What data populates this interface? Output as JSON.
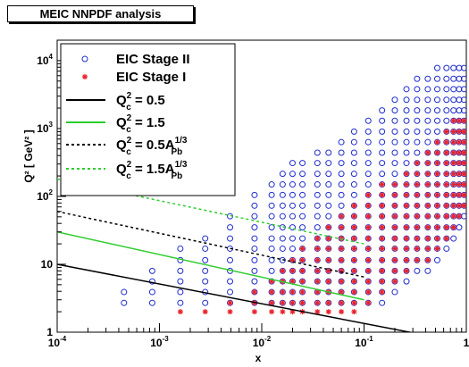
{
  "title": "MEIC NNPDF analysis",
  "chart_data": {
    "type": "scatter",
    "xscale": "log",
    "yscale": "log",
    "xlim": [
      0.0001,
      1
    ],
    "ylim": [
      1,
      20000
    ],
    "xlabel": "x",
    "ylabel": "Q² [ GeV² ]",
    "x_ticks": [
      {
        "value": 0.0001,
        "base": "10",
        "exp": "-4"
      },
      {
        "value": 0.001,
        "base": "10",
        "exp": "-3"
      },
      {
        "value": 0.01,
        "base": "10",
        "exp": "-2"
      },
      {
        "value": 0.1,
        "base": "10",
        "exp": "-1"
      },
      {
        "value": 1,
        "base": "1",
        "exp": ""
      }
    ],
    "y_ticks": [
      {
        "value": 1,
        "base": "1",
        "exp": ""
      },
      {
        "value": 10,
        "base": "10",
        "exp": ""
      },
      {
        "value": 100,
        "base": "10",
        "exp": "2"
      },
      {
        "value": 1000,
        "base": "10",
        "exp": "3"
      },
      {
        "value": 10000,
        "base": "10",
        "exp": "4"
      }
    ],
    "grid": false,
    "legend_position": "top-left",
    "legend": [
      {
        "key": "stage2",
        "marker": "circle",
        "color": "#1f2ccc",
        "parts": [
          {
            "t": "EIC Stage II"
          }
        ]
      },
      {
        "key": "stage1",
        "marker": "star",
        "color": "#e8202a",
        "parts": [
          {
            "t": "EIC Stage I"
          }
        ]
      },
      {
        "key": "c1",
        "line": "solid",
        "color": "#000000",
        "parts": [
          {
            "t": "Q"
          },
          {
            "t": "2",
            "pos": "sup"
          },
          {
            "t": "c",
            "pos": "sub"
          },
          {
            "t": " = 0.5"
          }
        ]
      },
      {
        "key": "c2",
        "line": "solid",
        "color": "#2ecc2e",
        "parts": [
          {
            "t": "Q"
          },
          {
            "t": "2",
            "pos": "sup"
          },
          {
            "t": "c",
            "pos": "sub"
          },
          {
            "t": " = 1.5"
          }
        ]
      },
      {
        "key": "c3",
        "line": "dashed",
        "color": "#000000",
        "parts": [
          {
            "t": "Q"
          },
          {
            "t": "2",
            "pos": "sup"
          },
          {
            "t": "c",
            "pos": "sub"
          },
          {
            "t": " = 0.5A"
          },
          {
            "t": "1/3",
            "pos": "sup"
          },
          {
            "t": "Pb",
            "pos": "sub"
          }
        ]
      },
      {
        "key": "c4",
        "line": "dashed",
        "color": "#2ecc2e",
        "parts": [
          {
            "t": "Q"
          },
          {
            "t": "2",
            "pos": "sup"
          },
          {
            "t": "c",
            "pos": "sub"
          },
          {
            "t": " = 1.5A"
          },
          {
            "t": "1/3",
            "pos": "sup"
          },
          {
            "t": "Pb",
            "pos": "sub"
          }
        ]
      }
    ],
    "lines": [
      {
        "name": "c1",
        "style": "solid",
        "color": "#000000",
        "x": [
          0.0001,
          0.4
        ],
        "y": [
          10,
          0.9
        ]
      },
      {
        "name": "c2",
        "style": "solid",
        "color": "#2ecc2e",
        "x": [
          0.0001,
          0.1
        ],
        "y": [
          30,
          3
        ]
      },
      {
        "name": "c3",
        "style": "dashed",
        "color": "#000000",
        "x": [
          0.0001,
          0.1
        ],
        "y": [
          60,
          6.5
        ]
      },
      {
        "name": "c4",
        "style": "dashed",
        "color": "#2ecc2e",
        "x": [
          0.0001,
          0.1
        ],
        "y": [
          180,
          20
        ]
      }
    ],
    "series": [
      {
        "name": "EIC Stage II",
        "marker": "circle",
        "color": "#1f2ccc",
        "columns": [
          {
            "x": 0.00045,
            "y": [
              2.7,
              3.9
            ]
          },
          {
            "x": 0.00085,
            "y": [
              2.7,
              3.9,
              5.6,
              8
            ]
          },
          {
            "x": 0.0016,
            "y": [
              2.7,
              3.9,
              5.6,
              8,
              11.5,
              17
            ]
          },
          {
            "x": 0.0028,
            "y": [
              2.7,
              3.9,
              5.6,
              8,
              11.5,
              17,
              24
            ]
          },
          {
            "x": 0.0049,
            "y": [
              2.7,
              3.9,
              5.6,
              8,
              11.5,
              17,
              24,
              35,
              51
            ]
          },
          {
            "x": 0.0085,
            "y": [
              2.7,
              3.9,
              5.6,
              8,
              11.5,
              17,
              24,
              35,
              51,
              73,
              105
            ]
          },
          {
            "x": 0.0125,
            "y": [
              2.7,
              3.9,
              5.6,
              8,
              11.5,
              17,
              24,
              35,
              51,
              73,
              105,
              150
            ]
          },
          {
            "x": 0.016,
            "y": [
              2.7,
              3.9,
              5.6,
              8,
              11.5,
              17,
              24,
              35,
              51,
              73,
              105,
              150,
              215
            ]
          },
          {
            "x": 0.02,
            "y": [
              2.7,
              3.9,
              5.6,
              8,
              11.5,
              17,
              24,
              35,
              51,
              73,
              105,
              150,
              215,
              310
            ]
          },
          {
            "x": 0.025,
            "y": [
              2.7,
              3.9,
              5.6,
              8,
              11.5,
              17,
              24,
              35,
              51,
              73,
              105,
              150,
              215,
              310
            ]
          },
          {
            "x": 0.035,
            "y": [
              2.7,
              3.9,
              5.6,
              8,
              11.5,
              17,
              24,
              35,
              51,
              73,
              105,
              150,
              215,
              310,
              440
            ]
          },
          {
            "x": 0.045,
            "y": [
              2.7,
              3.9,
              5.6,
              8,
              11.5,
              17,
              24,
              35,
              51,
              73,
              105,
              150,
              215,
              310,
              440
            ]
          },
          {
            "x": 0.06,
            "y": [
              2.7,
              3.9,
              5.6,
              8,
              11.5,
              17,
              24,
              35,
              51,
              73,
              105,
              150,
              215,
              310,
              440,
              630
            ]
          },
          {
            "x": 0.08,
            "y": [
              2.7,
              3.9,
              5.6,
              8,
              11.5,
              17,
              24,
              35,
              51,
              73,
              105,
              150,
              215,
              310,
              440,
              630,
              900
            ]
          },
          {
            "x": 0.11,
            "y": [
              2.7,
              3.9,
              5.6,
              8,
              11.5,
              17,
              24,
              35,
              51,
              73,
              105,
              150,
              215,
              310,
              440,
              630,
              900,
              1300
            ]
          },
          {
            "x": 0.15,
            "y": [
              2.7,
              3.9,
              5.6,
              8,
              11.5,
              17,
              24,
              35,
              51,
              73,
              105,
              150,
              215,
              310,
              440,
              630,
              900,
              1300,
              1850
            ]
          },
          {
            "x": 0.2,
            "y": [
              3.9,
              5.6,
              8,
              11.5,
              17,
              24,
              35,
              51,
              73,
              105,
              150,
              215,
              310,
              440,
              630,
              900,
              1300,
              1850,
              2650
            ]
          },
          {
            "x": 0.26,
            "y": [
              5.6,
              8,
              11.5,
              17,
              24,
              35,
              51,
              73,
              105,
              150,
              215,
              310,
              440,
              630,
              900,
              1300,
              1850,
              2650,
              3800
            ]
          },
          {
            "x": 0.33,
            "y": [
              8,
              11.5,
              17,
              24,
              35,
              51,
              73,
              105,
              150,
              215,
              310,
              440,
              630,
              900,
              1300,
              1850,
              2650,
              3800,
              5400
            ]
          },
          {
            "x": 0.42,
            "y": [
              8,
              11.5,
              17,
              24,
              35,
              51,
              73,
              105,
              150,
              215,
              310,
              440,
              630,
              900,
              1300,
              1850,
              2650,
              3800,
              5400
            ]
          },
          {
            "x": 0.52,
            "y": [
              11.5,
              17,
              24,
              35,
              51,
              73,
              105,
              150,
              215,
              310,
              440,
              630,
              900,
              1300,
              1850,
              2650,
              3800,
              5400,
              7800
            ]
          },
          {
            "x": 0.64,
            "y": [
              17,
              24,
              35,
              51,
              73,
              105,
              150,
              215,
              310,
              440,
              630,
              900,
              1300,
              1850,
              2650,
              3800,
              5400,
              7800
            ]
          },
          {
            "x": 0.75,
            "y": [
              24,
              35,
              51,
              73,
              105,
              150,
              215,
              310,
              440,
              630,
              900,
              1300,
              1850,
              2650,
              3800,
              5400,
              7800
            ]
          },
          {
            "x": 0.85,
            "y": [
              35,
              51,
              73,
              105,
              150,
              215,
              310,
              440,
              630,
              900,
              1300,
              1850,
              2650,
              3800,
              5400,
              7800
            ]
          },
          {
            "x": 0.95,
            "y": [
              51,
              73,
              105,
              150,
              215,
              310,
              440,
              630,
              900,
              1300,
              1850,
              2650,
              3800,
              5400,
              7800
            ]
          }
        ]
      },
      {
        "name": "EIC Stage I",
        "marker": "star",
        "color": "#e8202a",
        "columns": [
          {
            "x": 0.0016,
            "y": [
              2
            ]
          },
          {
            "x": 0.0028,
            "y": [
              2
            ]
          },
          {
            "x": 0.0049,
            "y": [
              2,
              2.7
            ]
          },
          {
            "x": 0.0085,
            "y": [
              2,
              2.7,
              3.9
            ]
          },
          {
            "x": 0.0125,
            "y": [
              2,
              2.7,
              3.9,
              5.6
            ]
          },
          {
            "x": 0.016,
            "y": [
              2,
              2.7,
              3.9,
              5.6,
              8
            ]
          },
          {
            "x": 0.02,
            "y": [
              2,
              2.7,
              3.9,
              5.6,
              8,
              11.5
            ]
          },
          {
            "x": 0.025,
            "y": [
              2,
              2.7,
              3.9,
              5.6,
              8,
              11.5,
              17
            ]
          },
          {
            "x": 0.035,
            "y": [
              2,
              2.7,
              3.9,
              5.6,
              8,
              11.5,
              17,
              24
            ]
          },
          {
            "x": 0.045,
            "y": [
              2,
              2.7,
              3.9,
              5.6,
              8,
              11.5,
              17,
              24,
              35
            ]
          },
          {
            "x": 0.06,
            "y": [
              2,
              2.7,
              3.9,
              5.6,
              8,
              11.5,
              17,
              24,
              35,
              51
            ]
          },
          {
            "x": 0.08,
            "y": [
              2,
              2.7,
              3.9,
              5.6,
              8,
              11.5,
              17,
              24,
              35,
              51,
              73
            ]
          },
          {
            "x": 0.11,
            "y": [
              2.7,
              3.9,
              5.6,
              8,
              11.5,
              17,
              24,
              35,
              51,
              73,
              105
            ]
          },
          {
            "x": 0.15,
            "y": [
              3.9,
              5.6,
              8,
              11.5,
              17,
              24,
              35,
              51,
              73,
              105,
              150
            ]
          },
          {
            "x": 0.2,
            "y": [
              5.6,
              8,
              11.5,
              17,
              24,
              35,
              51,
              73,
              105,
              150
            ]
          },
          {
            "x": 0.26,
            "y": [
              8,
              11.5,
              17,
              24,
              35,
              51,
              73,
              105,
              150,
              215
            ]
          },
          {
            "x": 0.33,
            "y": [
              11.5,
              17,
              24,
              35,
              51,
              73,
              105,
              150,
              215,
              310
            ]
          },
          {
            "x": 0.42,
            "y": [
              11.5,
              17,
              24,
              35,
              51,
              73,
              105,
              150,
              215,
              310,
              440
            ]
          },
          {
            "x": 0.52,
            "y": [
              17,
              24,
              35,
              51,
              73,
              105,
              150,
              215,
              310,
              440,
              630
            ]
          },
          {
            "x": 0.64,
            "y": [
              24,
              35,
              51,
              73,
              105,
              150,
              215,
              310,
              440,
              630,
              900
            ]
          },
          {
            "x": 0.75,
            "y": [
              35,
              51,
              73,
              105,
              150,
              215,
              310,
              440,
              630,
              900,
              1300
            ]
          },
          {
            "x": 0.85,
            "y": [
              51,
              73,
              105,
              150,
              215,
              310,
              440,
              630,
              900,
              1300
            ]
          },
          {
            "x": 0.95,
            "y": [
              73,
              105,
              150,
              215,
              310,
              440,
              630,
              900,
              1300
            ]
          }
        ]
      }
    ]
  }
}
